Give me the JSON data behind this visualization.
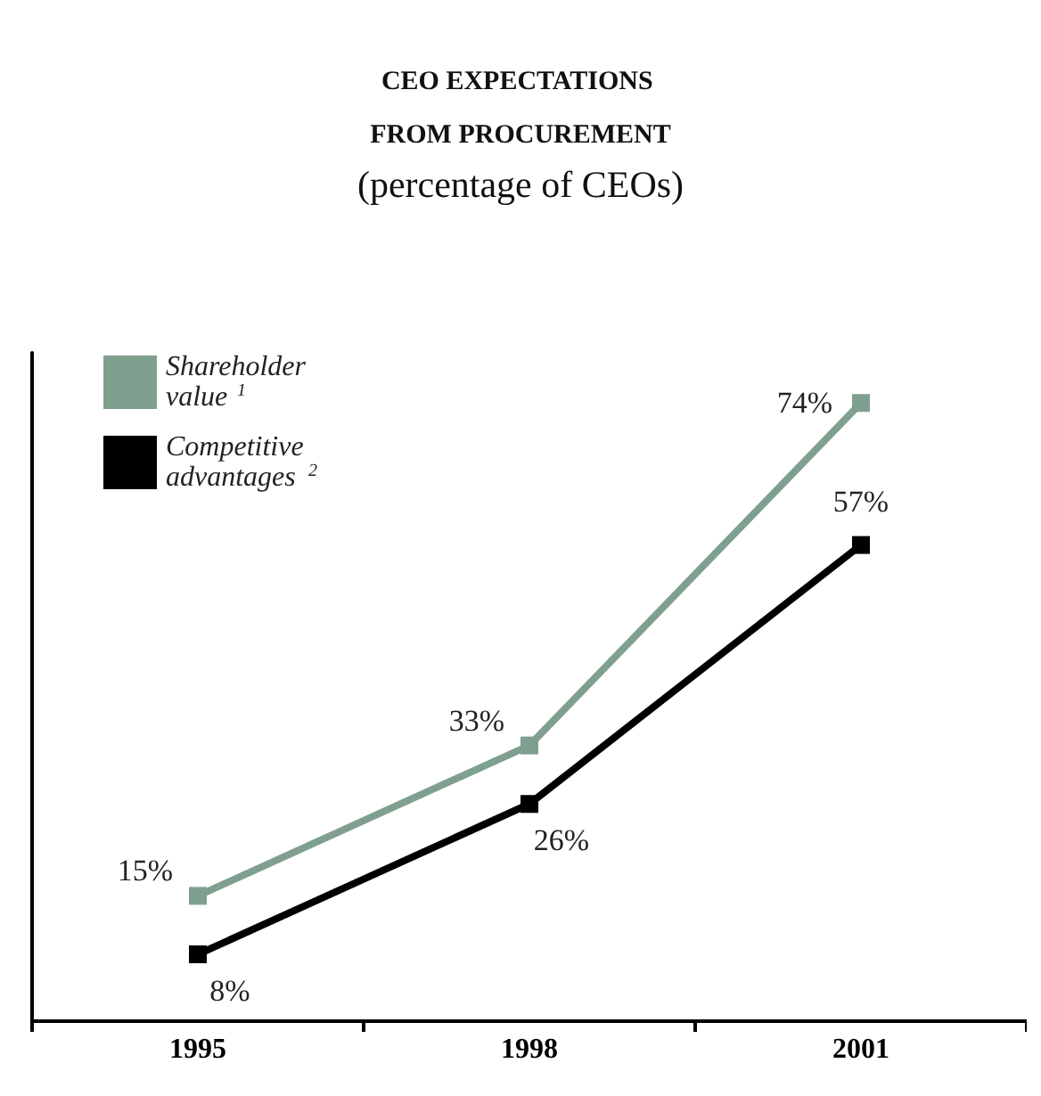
{
  "chart_data": {
    "type": "line",
    "title": "CEO EXPECTATIONS FROM PROCUREMENT",
    "subtitle": "(percentage of CEOs)",
    "categories": [
      "1995",
      "1998",
      "2001"
    ],
    "series": [
      {
        "name": "Shareholder value$^{1}$",
        "color": "#7f9f8f",
        "values": [
          15,
          33,
          74
        ],
        "value_labels": [
          "15%",
          "33%",
          "74%"
        ]
      },
      {
        "name": "Competitive advantages$^{2}$",
        "color": "#000000",
        "values": [
          8,
          26,
          57
        ],
        "value_labels": [
          "8%",
          "26%",
          "57%"
        ]
      }
    ],
    "legend": "top left",
    "marker": "square",
    "line_style": "solid",
    "grid": false
  }
}
